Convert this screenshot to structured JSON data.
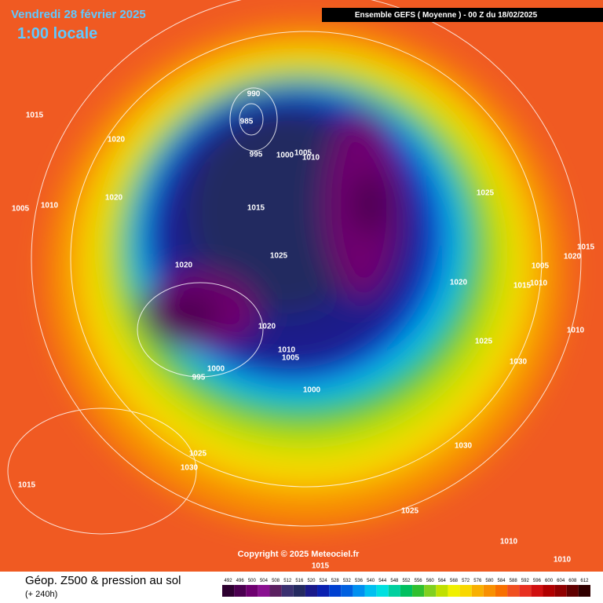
{
  "header": {
    "date": "Vendredi 28 février 2025",
    "time": "1:00 locale",
    "model": "Ensemble GEFS  ( Moyenne )  -  00 Z du 18/02/2025"
  },
  "isobar_labels": [
    "990",
    "985",
    "995",
    "1000",
    "1005",
    "1010",
    "1015",
    "1025",
    "1020",
    "1020",
    "1010",
    "1005",
    "1000",
    "995",
    "1000",
    "1015",
    "1020",
    "1020",
    "1005",
    "1010",
    "1025",
    "1020",
    "1025",
    "1030",
    "1005",
    "1010",
    "1015",
    "1020",
    "1015",
    "1010",
    "1030",
    "1025",
    "1030",
    "1015",
    "1025",
    "1010",
    "1010",
    "1015"
  ],
  "copyright": "Copyright © 2025 Meteociel.fr",
  "footer": {
    "title": "Géop. Z500 & pression au sol",
    "subtitle": "(+ 240h)"
  },
  "legend": {
    "values": [
      492,
      496,
      500,
      504,
      508,
      512,
      516,
      520,
      524,
      528,
      532,
      536,
      540,
      544,
      548,
      552,
      556,
      560,
      564,
      568,
      572,
      576,
      580,
      584,
      588,
      592,
      596,
      600,
      604,
      608,
      612
    ],
    "colors": [
      "#2d0030",
      "#4b0050",
      "#6e0070",
      "#8a1090",
      "#5a2060",
      "#3a3070",
      "#242a60",
      "#1a1a8a",
      "#0a20b0",
      "#0040d0",
      "#0060e0",
      "#0090f0",
      "#00c0f0",
      "#00e0e0",
      "#00d0a0",
      "#00c060",
      "#30c030",
      "#80d020",
      "#c0e000",
      "#f0f000",
      "#f8d800",
      "#f8b000",
      "#f89000",
      "#f87000",
      "#f05020",
      "#e83020",
      "#d01010",
      "#b00000",
      "#900000",
      "#600000",
      "#300000"
    ]
  }
}
